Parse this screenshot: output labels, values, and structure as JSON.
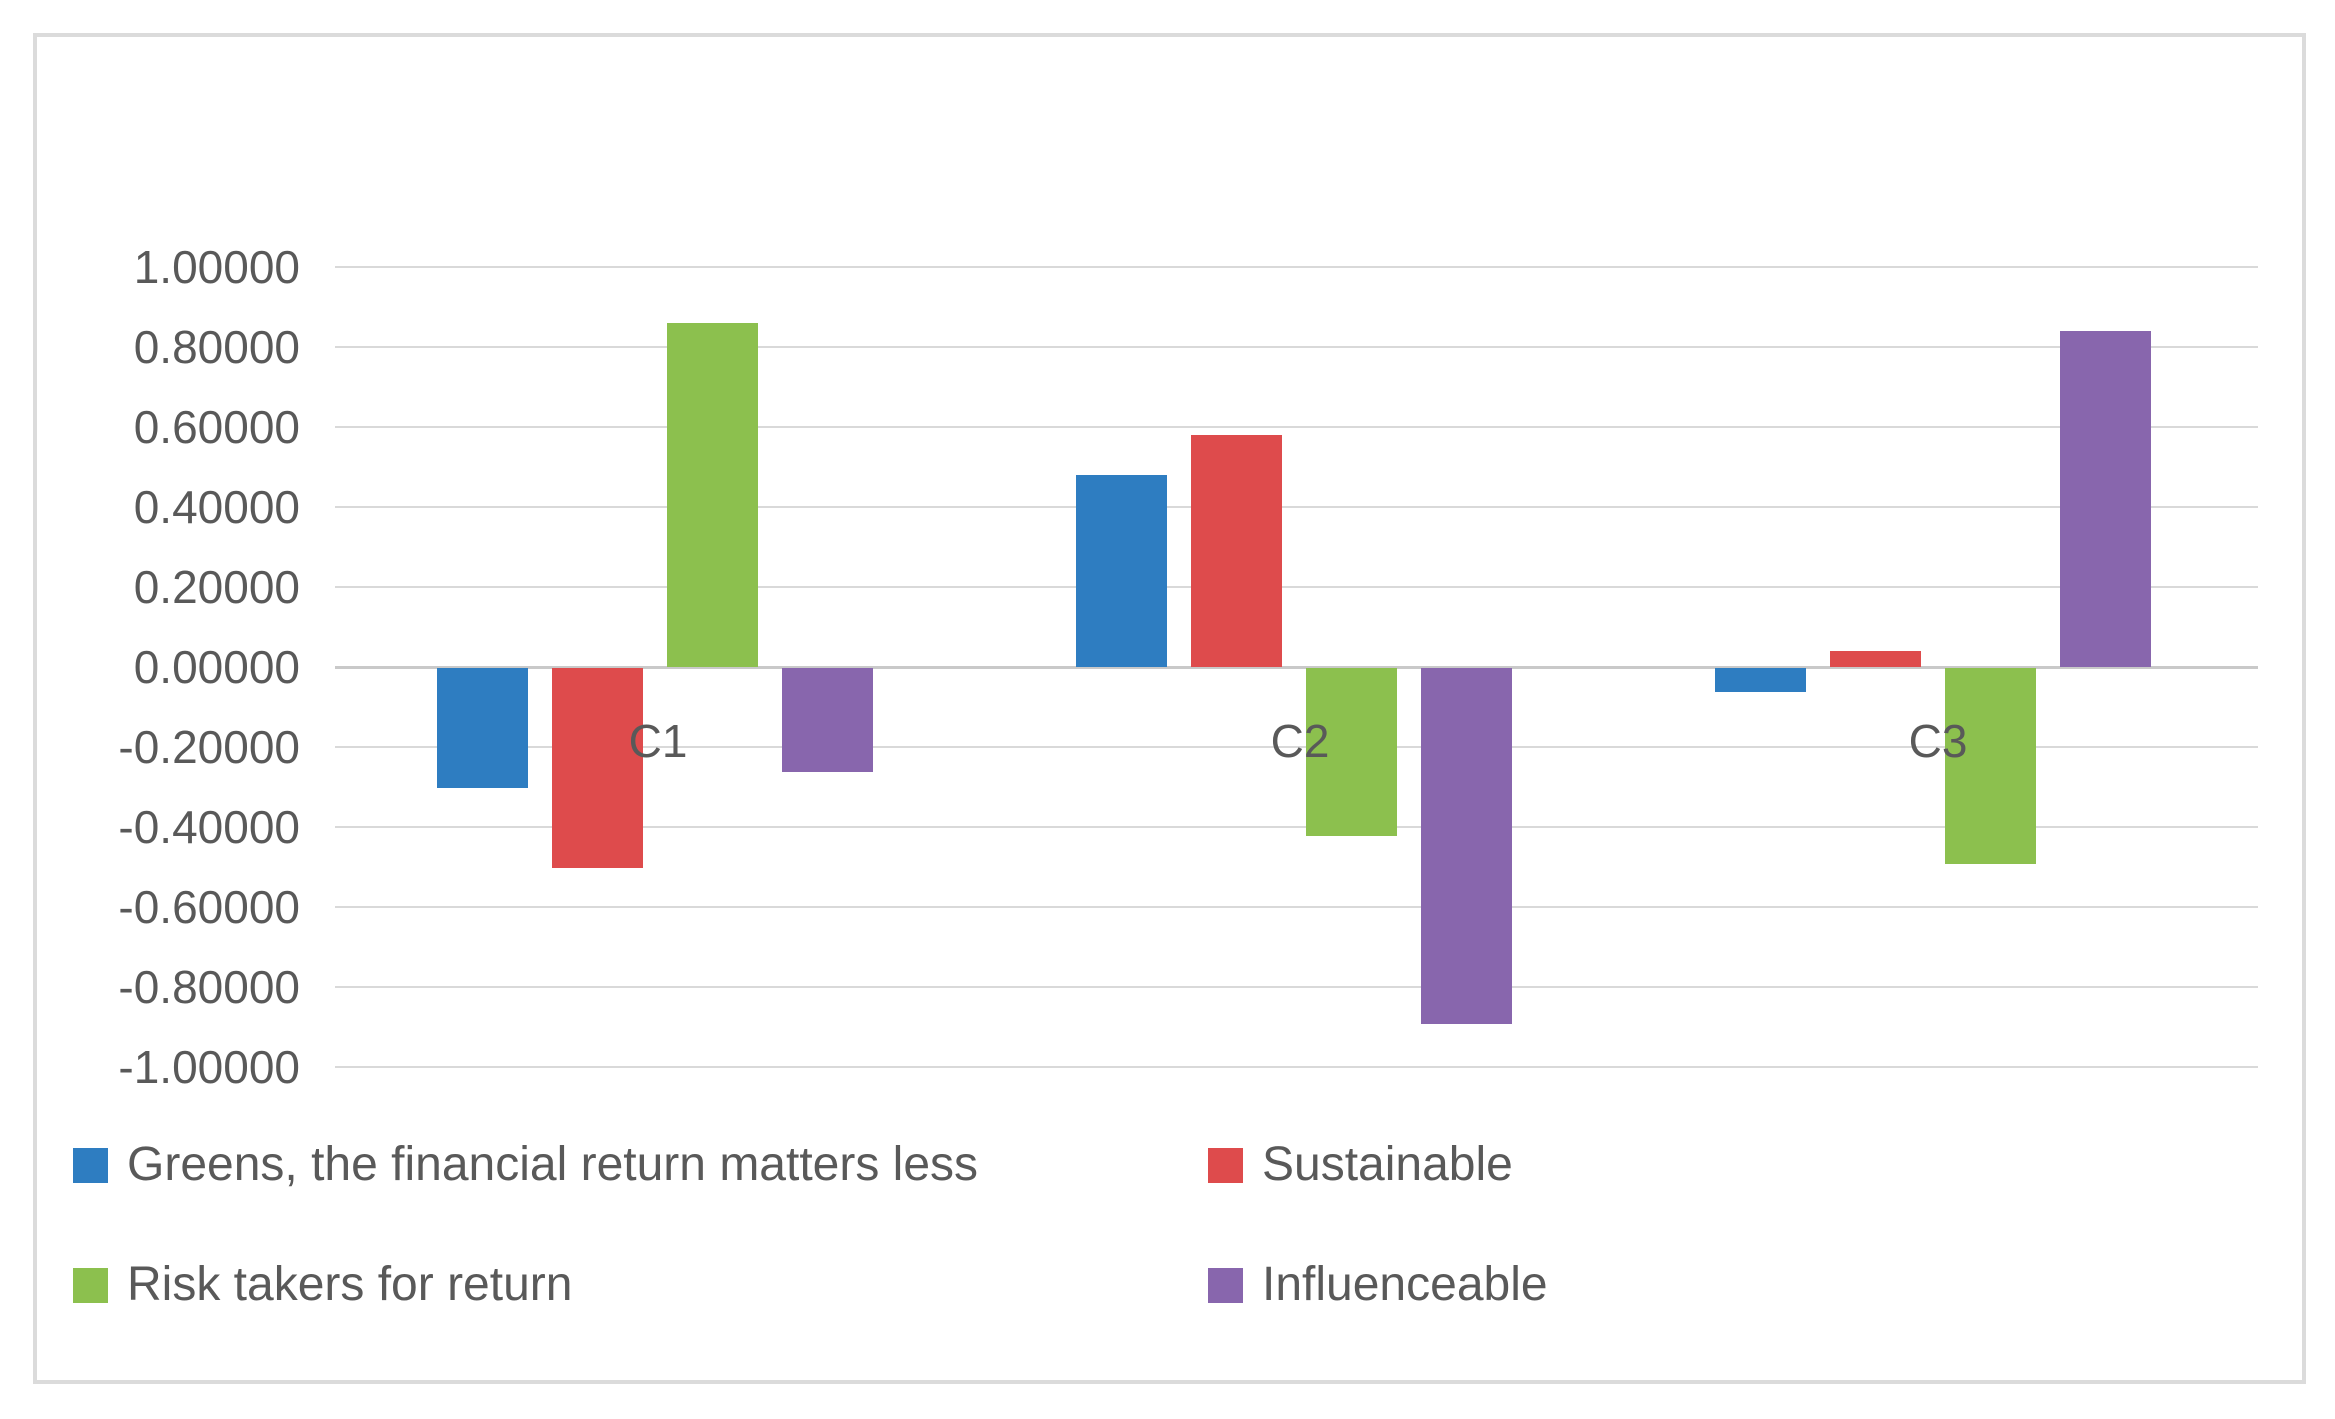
{
  "chart_data": {
    "type": "bar",
    "title": "",
    "categories": [
      "C1",
      "C2",
      "C3"
    ],
    "series": [
      {
        "name": "Greens, the financial return matters less",
        "slug": "greens",
        "color": "#2E7DC1",
        "values": [
          -0.3,
          0.48,
          -0.06
        ]
      },
      {
        "name": "Sustainable",
        "slug": "sustainable",
        "color": "#DE4B4C",
        "values": [
          -0.5,
          0.58,
          0.04
        ]
      },
      {
        "name": "Risk takers for return",
        "slug": "risk-takers",
        "color": "#8CC04E",
        "values": [
          0.86,
          -0.42,
          -0.49
        ]
      },
      {
        "name": "Influenceable",
        "slug": "influenceable",
        "color": "#8866AD",
        "values": [
          -0.26,
          -0.89,
          0.84
        ]
      }
    ],
    "y_axis": {
      "min": -1.0,
      "max": 1.0,
      "step": 0.2,
      "tick_labels": [
        "1.00000",
        "0.80000",
        "0.60000",
        "0.40000",
        "0.20000",
        "0.00000",
        "-0.20000",
        "-0.40000",
        "-0.60000",
        "-0.80000",
        "-1.00000"
      ]
    },
    "grid": true,
    "legend_position": "bottom",
    "colors": {
      "gridline": "#D9D9D9",
      "zero_line": "#C9C9C9",
      "axis_text": "#595959",
      "border": "#DBDBDB",
      "background": "#FFFFFF"
    }
  }
}
